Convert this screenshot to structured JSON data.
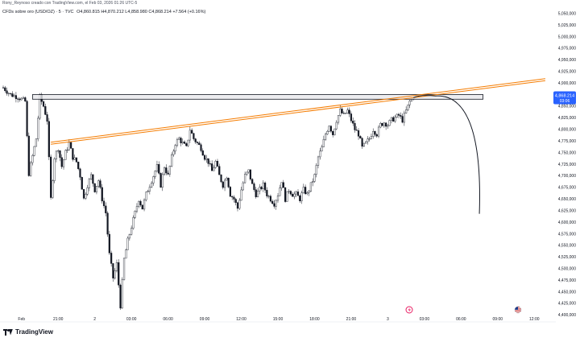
{
  "header": {
    "attribution": "Rony_Reynoso creado con TradingView.com, el Feb 03, 2026 01:26 UTC-5"
  },
  "symbol_line": {
    "name": "CFDs sobre oro (USD/OZ) · 5 · TVC",
    "ohlc": "O4,860.815  H4,870.212  L4,858.980  C4,868.214  +7.564 (+0.16%)",
    "up_color": "#089981"
  },
  "price_badge": {
    "price": "4,868.214",
    "countdown": "03:06",
    "color": "#2962ff"
  },
  "brand": "TradingView",
  "icons": [
    "lightning-event-icon",
    "us-flag-icon"
  ],
  "colors": {
    "trendline": "#f57c00",
    "resistance_zone_fill": "#e8e8ec",
    "resistance_zone_stroke": "#131722",
    "projection_curve": "#131722",
    "candle": "#131722"
  },
  "chart_data": {
    "type": "candlestick",
    "title": "",
    "y_ticks": [
      "5,050,000",
      "5,025,000",
      "5,000,000",
      "4,975,000",
      "4,950,000",
      "4,925,000",
      "4,900,000",
      "4,875,000",
      "4,850,000",
      "4,825,000",
      "4,800,000",
      "4,775,000",
      "4,750,000",
      "4,725,000",
      "4,700,000",
      "4,675,000",
      "4,650,000",
      "4,625,000",
      "4,600,000",
      "4,575,000",
      "4,550,000",
      "4,525,000",
      "4,500,000",
      "4,475,000",
      "4,450,000",
      "4,425,000",
      "4,400,000"
    ],
    "y_tick_values": [
      5050,
      5025,
      5000,
      4975,
      4950,
      4925,
      4900,
      4875,
      4850,
      4825,
      4800,
      4775,
      4750,
      4725,
      4700,
      4675,
      4650,
      4625,
      4600,
      4575,
      4550,
      4525,
      4500,
      4475,
      4450,
      4425,
      4400
    ],
    "ylim": [
      4385,
      5065
    ],
    "x_ticks": [
      "Feb",
      "21:00",
      "2",
      "03:00",
      "06:00",
      "09:00",
      "12:00",
      "15:00",
      "18:00",
      "21:00",
      "3",
      "03:00",
      "06:00",
      "09:00",
      "12:00"
    ],
    "x_tick_index": [
      5,
      15,
      25,
      35,
      45,
      55,
      65,
      75,
      85,
      95,
      105,
      115,
      125,
      135,
      145
    ],
    "x_range": [
      0,
      150
    ],
    "grid": false,
    "legend": "none",
    "close_path": [
      [
        0,
        4890
      ],
      [
        2,
        4875
      ],
      [
        4,
        4870
      ],
      [
        6,
        4860
      ],
      [
        7,
        4705
      ],
      [
        9,
        4780
      ],
      [
        10,
        4870
      ],
      [
        11,
        4850
      ],
      [
        12,
        4820
      ],
      [
        13,
        4650
      ],
      [
        14,
        4740
      ],
      [
        15,
        4760
      ],
      [
        16,
        4720
      ],
      [
        17,
        4750
      ],
      [
        18,
        4770
      ],
      [
        19,
        4740
      ],
      [
        20,
        4730
      ],
      [
        21,
        4700
      ],
      [
        22,
        4650
      ],
      [
        23,
        4680
      ],
      [
        24,
        4700
      ],
      [
        25,
        4670
      ],
      [
        26,
        4690
      ],
      [
        27,
        4650
      ],
      [
        28,
        4620
      ],
      [
        29,
        4530
      ],
      [
        30,
        4480
      ],
      [
        31,
        4510
      ],
      [
        32,
        4420
      ],
      [
        33,
        4520
      ],
      [
        34,
        4560
      ],
      [
        35,
        4590
      ],
      [
        36,
        4620
      ],
      [
        37,
        4650
      ],
      [
        38,
        4630
      ],
      [
        39,
        4660
      ],
      [
        40,
        4680
      ],
      [
        41,
        4700
      ],
      [
        42,
        4720
      ],
      [
        43,
        4680
      ],
      [
        44,
        4720
      ],
      [
        45,
        4700
      ],
      [
        46,
        4740
      ],
      [
        47,
        4770
      ],
      [
        48,
        4780
      ],
      [
        49,
        4770
      ],
      [
        50,
        4760
      ],
      [
        51,
        4800
      ],
      [
        52,
        4780
      ],
      [
        53,
        4770
      ],
      [
        54,
        4760
      ],
      [
        55,
        4740
      ],
      [
        56,
        4730
      ],
      [
        57,
        4710
      ],
      [
        58,
        4730
      ],
      [
        59,
        4700
      ],
      [
        60,
        4680
      ],
      [
        61,
        4700
      ],
      [
        62,
        4660
      ],
      [
        63,
        4650
      ],
      [
        64,
        4630
      ],
      [
        65,
        4670
      ],
      [
        66,
        4700
      ],
      [
        67,
        4710
      ],
      [
        68,
        4680
      ],
      [
        69,
        4660
      ],
      [
        70,
        4670
      ],
      [
        71,
        4680
      ],
      [
        72,
        4660
      ],
      [
        73,
        4650
      ],
      [
        74,
        4640
      ],
      [
        75,
        4660
      ],
      [
        76,
        4690
      ],
      [
        77,
        4650
      ],
      [
        78,
        4670
      ],
      [
        79,
        4660
      ],
      [
        80,
        4660
      ],
      [
        81,
        4650
      ],
      [
        82,
        4670
      ],
      [
        83,
        4660
      ],
      [
        84,
        4680
      ],
      [
        85,
        4700
      ],
      [
        86,
        4740
      ],
      [
        87,
        4760
      ],
      [
        88,
        4790
      ],
      [
        89,
        4810
      ],
      [
        90,
        4790
      ],
      [
        91,
        4820
      ],
      [
        92,
        4840
      ],
      [
        93,
        4830
      ],
      [
        94,
        4840
      ],
      [
        95,
        4820
      ],
      [
        96,
        4800
      ],
      [
        97,
        4790
      ],
      [
        98,
        4760
      ],
      [
        99,
        4770
      ],
      [
        100,
        4780
      ],
      [
        101,
        4800
      ],
      [
        102,
        4790
      ],
      [
        103,
        4810
      ],
      [
        104,
        4815
      ],
      [
        105,
        4810
      ],
      [
        106,
        4820
      ],
      [
        107,
        4825
      ],
      [
        108,
        4830
      ],
      [
        109,
        4820
      ],
      [
        110,
        4840
      ],
      [
        111,
        4860
      ],
      [
        112,
        4868.214
      ]
    ],
    "annotations": {
      "resistance_zone": {
        "x_start": 8,
        "x_end": 131,
        "y_top": 4875,
        "y_bottom": 4865
      },
      "trendline": {
        "x_start": 13,
        "y_start": 4768,
        "x_end": 148,
        "y_end": 4905
      },
      "projection_curve": {
        "x_start": 112,
        "x_peak": 118,
        "y_peak": 4872,
        "x_end": 130,
        "y_end": 4618
      }
    }
  }
}
